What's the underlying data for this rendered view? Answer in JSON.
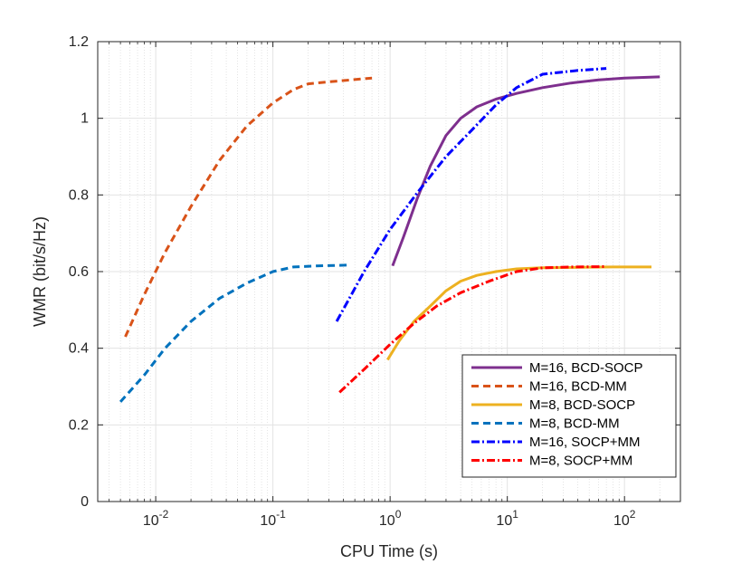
{
  "chart_data": {
    "type": "line",
    "xscale": "log",
    "xlabel": "CPU Time (s)",
    "ylabel": "WMR (bit/s/Hz)",
    "xlim": [
      0.0032,
      300
    ],
    "ylim": [
      0,
      1.2
    ],
    "grid": true,
    "legend_position": "bottom-right",
    "xticks": [
      {
        "value": 0.01,
        "base": "10",
        "exp": "-2"
      },
      {
        "value": 0.1,
        "base": "10",
        "exp": "-1"
      },
      {
        "value": 1,
        "base": "10",
        "exp": "0"
      },
      {
        "value": 10,
        "base": "10",
        "exp": "1"
      },
      {
        "value": 100,
        "base": "10",
        "exp": "2"
      }
    ],
    "yticks": [
      "0",
      "0.2",
      "0.4",
      "0.6",
      "0.8",
      "1",
      "1.2"
    ],
    "series": [
      {
        "name": "M=16, BCD-SOCP",
        "color": "#7e2f8e",
        "dash": "solid",
        "x": [
          1.05,
          1.3,
          1.7,
          2.2,
          3,
          4,
          5.5,
          8,
          12,
          20,
          35,
          60,
          100,
          200
        ],
        "y": [
          0.615,
          0.69,
          0.79,
          0.875,
          0.955,
          1.0,
          1.03,
          1.05,
          1.065,
          1.08,
          1.092,
          1.1,
          1.105,
          1.108
        ]
      },
      {
        "name": "M=16, BCD-MM",
        "color": "#d95319",
        "dash": "dashed",
        "x": [
          0.0055,
          0.008,
          0.012,
          0.02,
          0.035,
          0.06,
          0.1,
          0.15,
          0.2,
          0.3,
          0.7
        ],
        "y": [
          0.43,
          0.54,
          0.65,
          0.77,
          0.89,
          0.98,
          1.04,
          1.075,
          1.09,
          1.095,
          1.105
        ]
      },
      {
        "name": "M=8, BCD-SOCP",
        "color": "#edb120",
        "dash": "solid",
        "x": [
          0.95,
          1.2,
          1.6,
          2.2,
          3,
          4,
          5.5,
          8,
          12,
          20,
          40,
          80,
          170
        ],
        "y": [
          0.37,
          0.42,
          0.47,
          0.51,
          0.55,
          0.575,
          0.59,
          0.6,
          0.607,
          0.61,
          0.611,
          0.612,
          0.612
        ]
      },
      {
        "name": "M=8, BCD-MM",
        "color": "#0072bd",
        "dash": "dashed",
        "x": [
          0.005,
          0.008,
          0.012,
          0.02,
          0.035,
          0.06,
          0.1,
          0.15,
          0.25,
          0.45
        ],
        "y": [
          0.26,
          0.33,
          0.4,
          0.47,
          0.53,
          0.57,
          0.6,
          0.612,
          0.615,
          0.617
        ]
      },
      {
        "name": "M=16, SOCP+MM",
        "color": "#0000ff",
        "dash": "dashdot",
        "x": [
          0.35,
          0.6,
          1,
          1.7,
          3,
          5,
          8,
          12,
          20,
          40,
          70
        ],
        "y": [
          0.47,
          0.6,
          0.71,
          0.805,
          0.9,
          0.97,
          1.035,
          1.08,
          1.115,
          1.125,
          1.13
        ]
      },
      {
        "name": "M=8, SOCP+MM",
        "color": "#ff0000",
        "dash": "dashdot",
        "x": [
          0.37,
          0.6,
          1,
          1.6,
          2.5,
          4,
          7,
          12,
          20,
          35,
          70
        ],
        "y": [
          0.285,
          0.345,
          0.41,
          0.465,
          0.51,
          0.545,
          0.575,
          0.6,
          0.61,
          0.612,
          0.613
        ]
      }
    ]
  }
}
